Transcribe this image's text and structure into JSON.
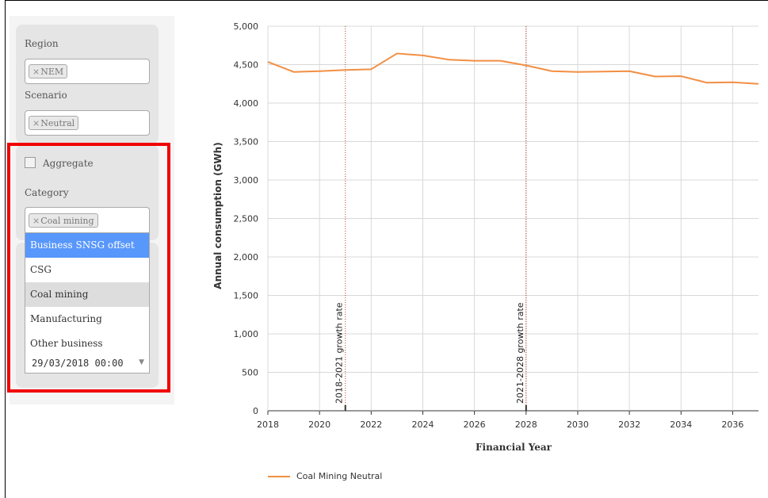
{
  "filters": {
    "region": {
      "label": "Region",
      "selected": "NEM",
      "remove": "×"
    },
    "scenario": {
      "label": "Scenario",
      "selected": "Neutral",
      "remove": "×"
    },
    "aggregate": {
      "label": "Aggregate",
      "checked": false
    },
    "category": {
      "label": "Category",
      "selected": "Coal mining",
      "remove": "×",
      "options": [
        "Business SNSG offset",
        "CSG",
        "Coal mining",
        "Manufacturing",
        "Other business"
      ],
      "highlighted": "Business SNSG offset"
    },
    "date": {
      "value": "29/03/2018 00:00",
      "arrow": "▼"
    }
  },
  "colors": {
    "series": "#f28f43",
    "highlight": "#5897fb",
    "annotation_box": "#f00000",
    "plotline": "#c0392b"
  },
  "chart_data": {
    "type": "line",
    "xlabel": "Financial Year",
    "ylabel": "Annual consumption (GWh)",
    "xlim": [
      2018,
      2037
    ],
    "ylim": [
      0,
      5000
    ],
    "xticks": [
      2018,
      2020,
      2022,
      2024,
      2026,
      2028,
      2030,
      2032,
      2034,
      2036
    ],
    "xtick_labels": [
      "2018",
      "2020",
      "2022",
      "2024",
      "2026",
      "2028",
      "2030",
      "2032",
      "2034",
      "2036"
    ],
    "yticks": [
      0,
      500,
      1000,
      1500,
      2000,
      2500,
      3000,
      3500,
      4000,
      4500,
      5000
    ],
    "ytick_labels": [
      "0",
      "500",
      "1,000",
      "1,500",
      "2,000",
      "2,500",
      "3,000",
      "3,500",
      "4,000",
      "4,500",
      "5,000"
    ],
    "grid": true,
    "legend_position": "bottom-left",
    "series": [
      {
        "name": "Coal Mining Neutral",
        "x": [
          2018,
          2019,
          2020,
          2021,
          2022,
          2023,
          2024,
          2025,
          2026,
          2027,
          2028,
          2029,
          2030,
          2031,
          2032,
          2033,
          2034,
          2035,
          2036,
          2037
        ],
        "values": [
          4535,
          4405,
          4415,
          4430,
          4440,
          4645,
          4620,
          4565,
          4550,
          4550,
          4490,
          4415,
          4405,
          4410,
          4415,
          4345,
          4350,
          4265,
          4270,
          4250
        ]
      }
    ],
    "plotlines": [
      {
        "x": 2021,
        "label": "2018-2021 growth rate"
      },
      {
        "x": 2028,
        "label": "2021-2028 growth rate"
      }
    ]
  }
}
